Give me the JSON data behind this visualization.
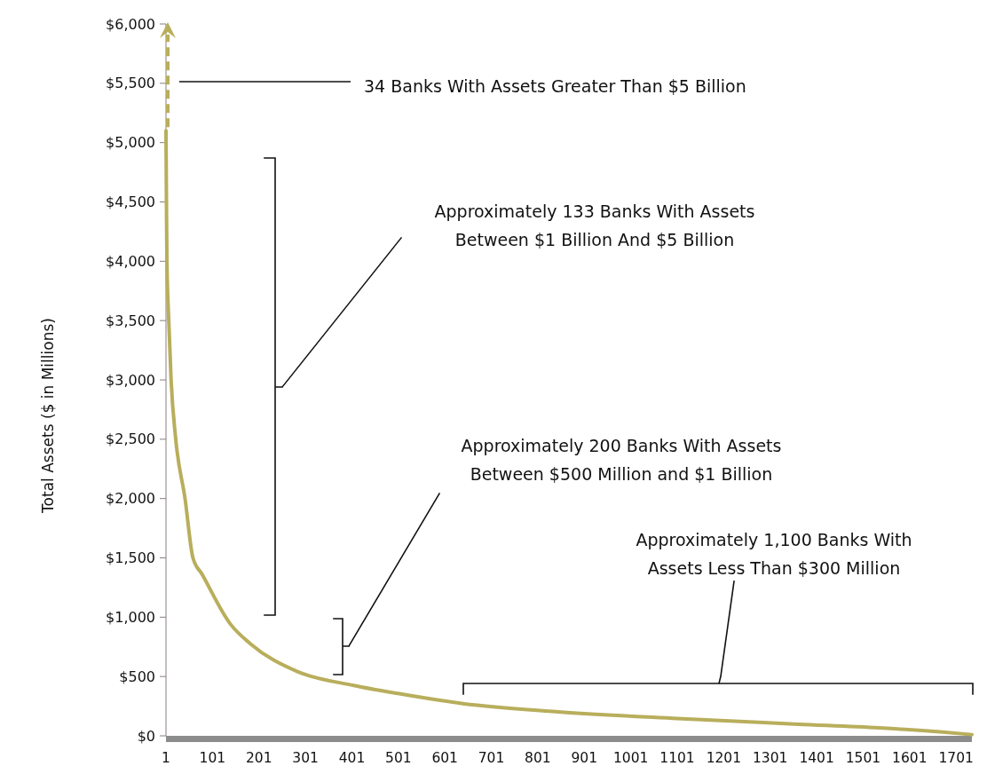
{
  "chart_data": {
    "type": "line",
    "ylabel": "Total Assets ($ in Millions)",
    "x": [
      1,
      2,
      3,
      7,
      12,
      22,
      42,
      59,
      79,
      140,
      183,
      285,
      405,
      500,
      640,
      839,
      1101,
      1362,
      1536,
      1666,
      1735
    ],
    "series": [
      {
        "color": "#b8ae5c",
        "values": [
          5100,
          4500,
          4000,
          3500,
          3000,
          2500,
          2000,
          1500,
          1360,
          940,
          775,
          540,
          425,
          357,
          272,
          204,
          146,
          98,
          67,
          33,
          10
        ]
      }
    ],
    "xlim": [
      1,
      1735
    ],
    "xticks": [
      1,
      101,
      201,
      301,
      401,
      501,
      601,
      701,
      801,
      901,
      1001,
      1101,
      1201,
      1301,
      1401,
      1501,
      1601,
      1701
    ],
    "ylim": [
      0,
      6000
    ],
    "yticks": [
      {
        "value": 0,
        "label": "$0"
      },
      {
        "value": 500,
        "label": "$500"
      },
      {
        "value": 1000,
        "label": "$1,000"
      },
      {
        "value": 1500,
        "label": "$1,500"
      },
      {
        "value": 2000,
        "label": "$2,000"
      },
      {
        "value": 2500,
        "label": "$2,500"
      },
      {
        "value": 3000,
        "label": "$3,000"
      },
      {
        "value": 3500,
        "label": "$3,500"
      },
      {
        "value": 4000,
        "label": "$4,000"
      },
      {
        "value": 4500,
        "label": "$4,500"
      },
      {
        "value": 5000,
        "label": "$5,000"
      },
      {
        "value": 5500,
        "label": "$5,500"
      },
      {
        "value": 6000,
        "label": "$6,000"
      }
    ],
    "grid": false,
    "marker": "none",
    "line_style": "solid",
    "annotations": [
      "34 Banks With Assets Greater Than $5 Billion",
      "Approximately 133 Banks With Assets\nBetween $1 Billion And $5 Billion",
      "Approximately 200 Banks With Assets\nBetween $500 Million and $1 Billion",
      "Approximately 1,100 Banks With\nAssets Less Than $300 Million"
    ]
  }
}
